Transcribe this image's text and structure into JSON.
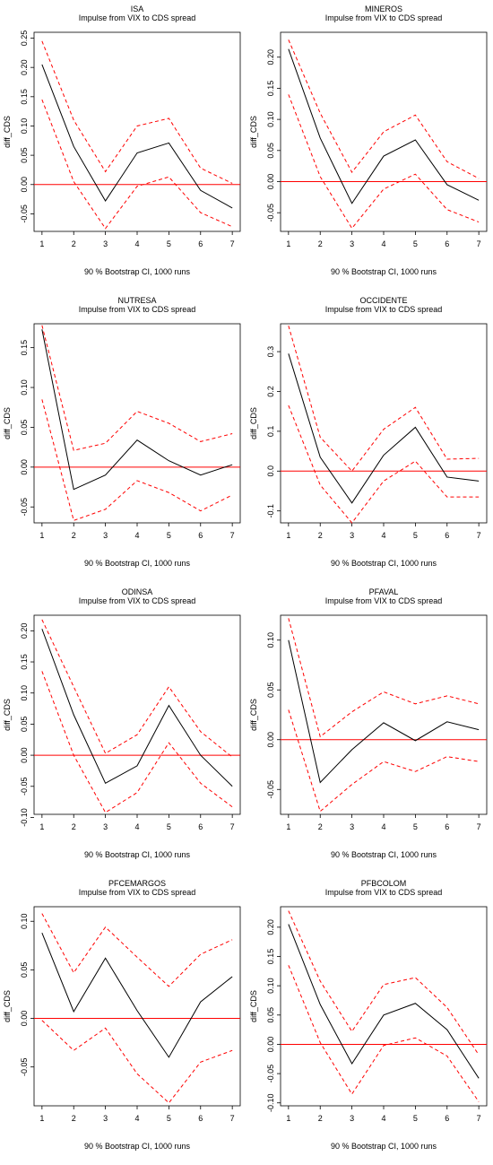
{
  "chart_data": [
    {
      "type": "line",
      "title": "ISA",
      "subtitle": "Impulse from VIX to CDS spread",
      "xlabel": "90 % Bootstrap CI, 1000 runs",
      "ylabel": "diff_CDS",
      "x": [
        1,
        2,
        3,
        4,
        5,
        6,
        7
      ],
      "xticks": [
        "1",
        "2",
        "3",
        "4",
        "5",
        "6",
        "7"
      ],
      "ylim": [
        -0.08,
        0.26
      ],
      "yticks": [
        -0.05,
        0.0,
        0.05,
        0.1,
        0.15,
        0.2,
        0.25
      ],
      "ytick_labels": [
        "-0.05",
        "0.00",
        "0.05",
        "0.10",
        "0.15",
        "0.20",
        "0.25"
      ],
      "zero_line": true,
      "series": [
        {
          "role": "irf",
          "values": [
            0.205,
            0.065,
            -0.028,
            0.054,
            0.071,
            -0.01,
            -0.04
          ]
        },
        {
          "role": "upper",
          "values": [
            0.245,
            0.11,
            0.022,
            0.1,
            0.113,
            0.028,
            0.002
          ]
        },
        {
          "role": "lower",
          "values": [
            0.145,
            0.005,
            -0.075,
            -0.003,
            0.013,
            -0.048,
            -0.072
          ]
        }
      ]
    },
    {
      "type": "line",
      "title": "MINEROS",
      "subtitle": "Impulse from VIX to CDS spread",
      "xlabel": "90 % Bootstrap CI, 1000 runs",
      "ylabel": "diff_CDS",
      "x": [
        1,
        2,
        3,
        4,
        5,
        6,
        7
      ],
      "xticks": [
        "1",
        "2",
        "3",
        "4",
        "5",
        "6",
        "7"
      ],
      "ylim": [
        -0.08,
        0.24
      ],
      "yticks": [
        -0.05,
        0.0,
        0.05,
        0.1,
        0.15,
        0.2
      ],
      "ytick_labels": [
        "-0.05",
        "0.00",
        "0.05",
        "0.10",
        "0.15",
        "0.20"
      ],
      "zero_line": true,
      "series": [
        {
          "role": "irf",
          "values": [
            0.213,
            0.07,
            -0.035,
            0.041,
            0.067,
            -0.005,
            -0.03
          ]
        },
        {
          "role": "upper",
          "values": [
            0.228,
            0.11,
            0.015,
            0.08,
            0.107,
            0.032,
            0.005
          ]
        },
        {
          "role": "lower",
          "values": [
            0.14,
            0.008,
            -0.075,
            -0.012,
            0.012,
            -0.045,
            -0.065
          ]
        }
      ]
    },
    {
      "type": "line",
      "title": "NUTRESA",
      "subtitle": "Impulse from VIX to CDS spread",
      "xlabel": "90 % Bootstrap CI, 1000 runs",
      "ylabel": "diff_CDS",
      "x": [
        1,
        2,
        3,
        4,
        5,
        6,
        7
      ],
      "xticks": [
        "1",
        "2",
        "3",
        "4",
        "5",
        "6",
        "7"
      ],
      "ylim": [
        -0.07,
        0.18
      ],
      "yticks": [
        -0.05,
        0.0,
        0.05,
        0.1,
        0.15
      ],
      "ytick_labels": [
        "-0.05",
        "0.00",
        "0.05",
        "0.10",
        "0.15"
      ],
      "zero_line": true,
      "series": [
        {
          "role": "irf",
          "values": [
            0.173,
            -0.028,
            -0.01,
            0.034,
            0.008,
            -0.01,
            0.003
          ]
        },
        {
          "role": "upper",
          "values": [
            0.178,
            0.021,
            0.03,
            0.07,
            0.055,
            0.032,
            0.042
          ]
        },
        {
          "role": "lower",
          "values": [
            0.085,
            -0.067,
            -0.053,
            -0.017,
            -0.032,
            -0.055,
            -0.035
          ]
        }
      ]
    },
    {
      "type": "line",
      "title": "OCCIDENTE",
      "subtitle": "Impulse from VIX to CDS spread",
      "xlabel": "90 % Bootstrap CI, 1000 runs",
      "ylabel": "diff_CDS",
      "x": [
        1,
        2,
        3,
        4,
        5,
        6,
        7
      ],
      "xticks": [
        "1",
        "2",
        "3",
        "4",
        "5",
        "6",
        "7"
      ],
      "ylim": [
        -0.13,
        0.37
      ],
      "yticks": [
        -0.1,
        0.0,
        0.1,
        0.2,
        0.3
      ],
      "ytick_labels": [
        "-0.1",
        "0.0",
        "0.1",
        "0.2",
        "0.3"
      ],
      "zero_line": true,
      "series": [
        {
          "role": "irf",
          "values": [
            0.295,
            0.035,
            -0.08,
            0.04,
            0.11,
            -0.015,
            -0.025
          ]
        },
        {
          "role": "upper",
          "values": [
            0.365,
            0.085,
            0.0,
            0.105,
            0.16,
            0.03,
            0.032
          ]
        },
        {
          "role": "lower",
          "values": [
            0.165,
            -0.035,
            -0.13,
            -0.025,
            0.025,
            -0.065,
            -0.065
          ]
        }
      ]
    },
    {
      "type": "line",
      "title": "ODINSA",
      "subtitle": "Impulse from VIX to CDS spread",
      "xlabel": "90 % Bootstrap CI, 1000 runs",
      "ylabel": "diff_CDS",
      "x": [
        1,
        2,
        3,
        4,
        5,
        6,
        7
      ],
      "xticks": [
        "1",
        "2",
        "3",
        "4",
        "5",
        "6",
        "7"
      ],
      "ylim": [
        -0.095,
        0.225
      ],
      "yticks": [
        -0.1,
        -0.05,
        0.0,
        0.05,
        0.1,
        0.15,
        0.2
      ],
      "ytick_labels": [
        "-0.10",
        "-0.05",
        "0.00",
        "0.05",
        "0.10",
        "0.15",
        "0.20"
      ],
      "zero_line": true,
      "series": [
        {
          "role": "irf",
          "values": [
            0.203,
            0.065,
            -0.045,
            -0.017,
            0.08,
            0.0,
            -0.05
          ]
        },
        {
          "role": "upper",
          "values": [
            0.218,
            0.11,
            0.003,
            0.033,
            0.11,
            0.038,
            -0.003
          ]
        },
        {
          "role": "lower",
          "values": [
            0.135,
            0.0,
            -0.092,
            -0.06,
            0.02,
            -0.045,
            -0.083
          ]
        }
      ]
    },
    {
      "type": "line",
      "title": "PFAVAL",
      "subtitle": "Impulse from VIX to CDS spread",
      "xlabel": "90 % Bootstrap CI, 1000 runs",
      "ylabel": "diff_CDS",
      "x": [
        1,
        2,
        3,
        4,
        5,
        6,
        7
      ],
      "xticks": [
        "1",
        "2",
        "3",
        "4",
        "5",
        "6",
        "7"
      ],
      "ylim": [
        -0.075,
        0.125
      ],
      "yticks": [
        -0.05,
        0.0,
        0.05,
        0.1
      ],
      "ytick_labels": [
        "-0.05",
        "0.00",
        "0.05",
        "0.10"
      ],
      "zero_line": true,
      "series": [
        {
          "role": "irf",
          "values": [
            0.1,
            -0.043,
            -0.01,
            0.017,
            -0.001,
            0.018,
            0.01
          ]
        },
        {
          "role": "upper",
          "values": [
            0.122,
            0.003,
            0.028,
            0.048,
            0.036,
            0.044,
            0.036
          ]
        },
        {
          "role": "lower",
          "values": [
            0.03,
            -0.072,
            -0.045,
            -0.022,
            -0.032,
            -0.017,
            -0.022
          ]
        }
      ]
    },
    {
      "type": "line",
      "title": "PFCEMARGOS",
      "subtitle": "Impulse from VIX to CDS spread",
      "xlabel": "90 % Bootstrap CI, 1000 runs",
      "ylabel": "diff_CDS",
      "x": [
        1,
        2,
        3,
        4,
        5,
        6,
        7
      ],
      "xticks": [
        "1",
        "2",
        "3",
        "4",
        "5",
        "6",
        "7"
      ],
      "ylim": [
        -0.09,
        0.115
      ],
      "yticks": [
        -0.05,
        0.0,
        0.05,
        0.1
      ],
      "ytick_labels": [
        "-0.05",
        "0.00",
        "0.05",
        "0.10"
      ],
      "zero_line": true,
      "series": [
        {
          "role": "irf",
          "values": [
            0.088,
            0.007,
            0.062,
            0.008,
            -0.04,
            0.017,
            0.043
          ]
        },
        {
          "role": "upper",
          "values": [
            0.108,
            0.047,
            0.094,
            0.063,
            0.033,
            0.066,
            0.081
          ]
        },
        {
          "role": "lower",
          "values": [
            -0.002,
            -0.033,
            -0.01,
            -0.057,
            -0.087,
            -0.045,
            -0.033
          ]
        }
      ]
    },
    {
      "type": "line",
      "title": "PFBCOLOM",
      "subtitle": "Impulse from VIX to CDS spread",
      "xlabel": "90 % Bootstrap CI, 1000 runs",
      "ylabel": "diff_CDS",
      "x": [
        1,
        2,
        3,
        4,
        5,
        6,
        7
      ],
      "xticks": [
        "1",
        "2",
        "3",
        "4",
        "5",
        "6",
        "7"
      ],
      "ylim": [
        -0.105,
        0.235
      ],
      "yticks": [
        -0.1,
        -0.05,
        0.0,
        0.05,
        0.1,
        0.15,
        0.2
      ],
      "ytick_labels": [
        "-0.10",
        "-0.05",
        "0.00",
        "0.05",
        "0.10",
        "0.15",
        "0.20"
      ],
      "zero_line": true,
      "series": [
        {
          "role": "irf",
          "values": [
            0.205,
            0.068,
            -0.033,
            0.05,
            0.07,
            0.025,
            -0.058
          ]
        },
        {
          "role": "upper",
          "values": [
            0.228,
            0.108,
            0.022,
            0.102,
            0.114,
            0.063,
            -0.018
          ]
        },
        {
          "role": "lower",
          "values": [
            0.135,
            0.003,
            -0.085,
            -0.002,
            0.011,
            -0.02,
            -0.098
          ]
        }
      ]
    }
  ]
}
